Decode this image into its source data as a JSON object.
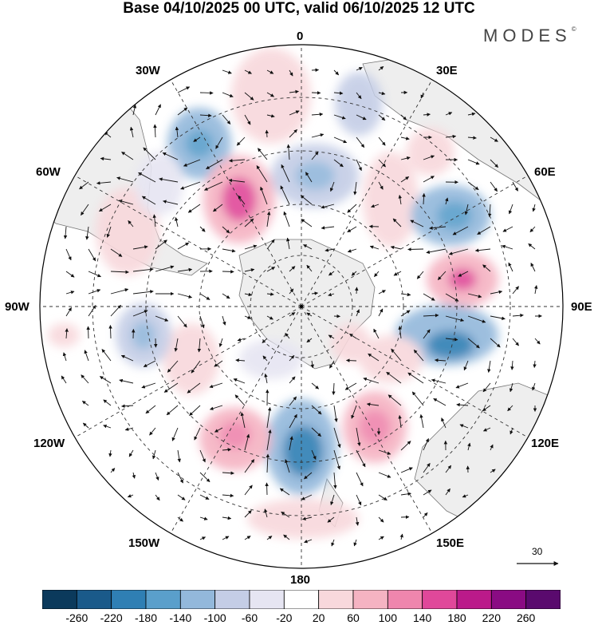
{
  "title": "Base 04/10/2025 00 UTC, valid 06/10/2025 12 UTC",
  "brand": "MODES",
  "brand_mark": "©",
  "longitude_labels": {
    "n": "0",
    "ne": "30E",
    "e1": "60E",
    "e": "90E",
    "se1": "120E",
    "se": "150E",
    "s": "180",
    "sw": "150W",
    "sw1": "120W",
    "w": "90W",
    "nw1": "60W",
    "nw": "30W"
  },
  "vector_scale": "30",
  "colorbar": {
    "labels": [
      "-260",
      "-220",
      "-180",
      "-140",
      "-100",
      "-60",
      "-20",
      "20",
      "60",
      "100",
      "140",
      "180",
      "220",
      "260"
    ],
    "colors": [
      "#0b3a5c",
      "#1a5a8a",
      "#2f7fb4",
      "#5a9fcb",
      "#93b8db",
      "#c4cde6",
      "#e6e5f2",
      "#ffffff",
      "#f8d8dc",
      "#f5b3c2",
      "#ef86ad",
      "#e0489a",
      "#bb1a8a",
      "#8a0b83",
      "#5a0a6e"
    ]
  },
  "anomaly_colors": {
    "ocean": "#ffffff",
    "land": "#eeeeee",
    "coast": "#777777"
  }
}
